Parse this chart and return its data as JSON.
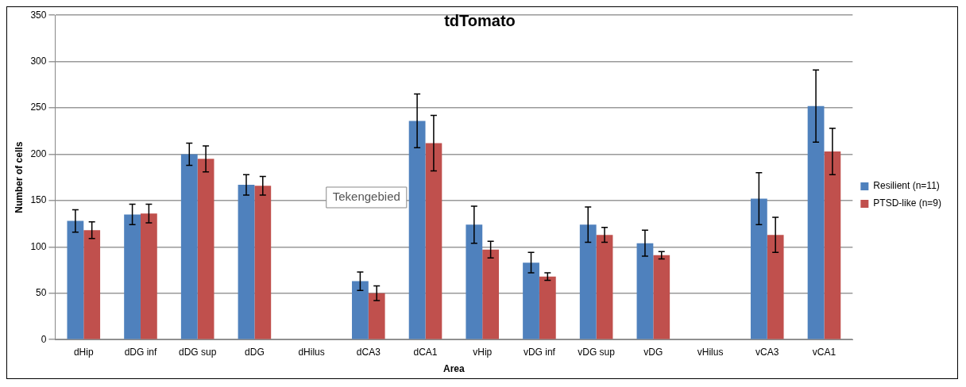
{
  "chart_data": {
    "type": "bar",
    "title": "tdTomato",
    "xlabel": "Area",
    "ylabel": "Number of cells",
    "categories": [
      "dHip",
      "dDG inf",
      "dDG sup",
      "dDG",
      "dHilus",
      "dCA3",
      "dCA1",
      "vHip",
      "vDG inf",
      "vDG sup",
      "vDG",
      "vHilus",
      "vCA3",
      "vCA1"
    ],
    "series": [
      {
        "name": "Resilient (n=11)",
        "color": "#4f81bd",
        "values": [
          128,
          135,
          200,
          167,
          null,
          63,
          236,
          124,
          83,
          124,
          104,
          null,
          152,
          252
        ],
        "errors": [
          12,
          11,
          12,
          11,
          null,
          10,
          29,
          20,
          11,
          19,
          14,
          null,
          28,
          39
        ]
      },
      {
        "name": "PTSD-like (n=9)",
        "color": "#c0504d",
        "values": [
          118,
          136,
          195,
          166,
          null,
          50,
          212,
          97,
          68,
          113,
          91,
          null,
          113,
          203
        ],
        "errors": [
          9,
          10,
          14,
          10,
          null,
          8,
          30,
          9,
          4,
          8,
          4,
          null,
          19,
          25
        ]
      }
    ],
    "ylim": [
      0,
      350
    ],
    "yticks": [
      0,
      50,
      100,
      150,
      200,
      250,
      300,
      350
    ],
    "grid": "y",
    "legend": "right",
    "annotations": [
      "Tekengebied"
    ]
  }
}
